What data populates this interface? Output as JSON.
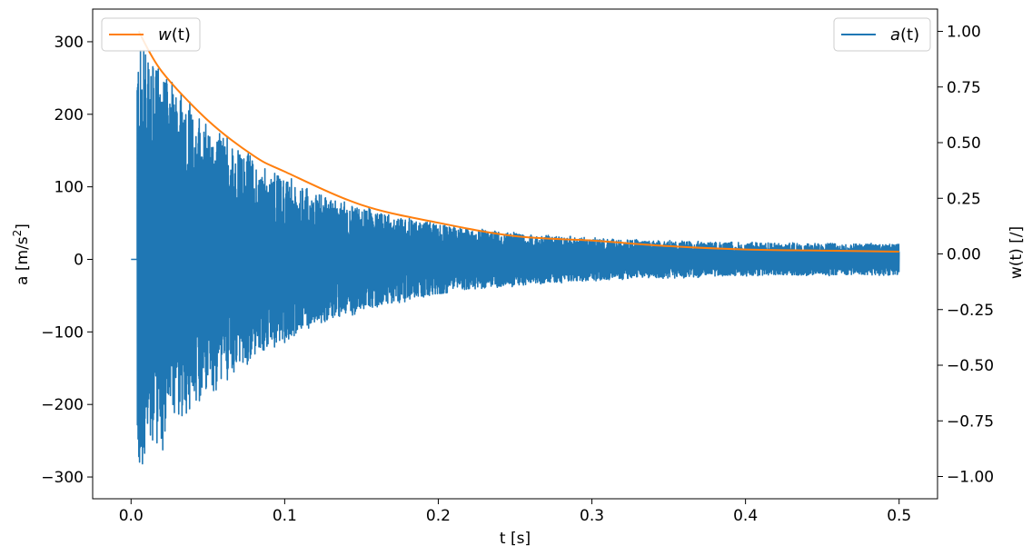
{
  "chart_data": {
    "type": "line",
    "xlabel": "t [s]",
    "ylabel_left_prefix": "a [m/s",
    "ylabel_left_sup": "2",
    "ylabel_left_suffix": "]",
    "ylabel_right": "w(t) [/]",
    "xlim": [
      -0.025,
      0.525
    ],
    "ylim_left": [
      -330,
      345
    ],
    "ylim_right": [
      -1.1,
      1.1
    ],
    "x_ticks": [
      0.0,
      0.1,
      0.2,
      0.3,
      0.4,
      0.5
    ],
    "x_tick_labels": [
      "0.0",
      "0.1",
      "0.2",
      "0.3",
      "0.4",
      "0.5"
    ],
    "y_left_ticks": [
      -300,
      -200,
      -100,
      0,
      100,
      200,
      300
    ],
    "y_left_tick_labels": [
      "−300",
      "−200",
      "−100",
      "0",
      "100",
      "200",
      "300"
    ],
    "y_right_ticks": [
      -1.0,
      -0.75,
      -0.5,
      -0.25,
      0.0,
      0.25,
      0.5,
      0.75,
      1.0
    ],
    "y_right_tick_labels": [
      "−1.00",
      "−0.75",
      "−0.50",
      "−0.25",
      "0.00",
      "0.25",
      "0.50",
      "0.75",
      "1.00"
    ],
    "grid": false,
    "series": [
      {
        "name": "a(t)",
        "legend_base": "a",
        "legend_arg": "(t)",
        "axis": "left",
        "color": "#1f77b4",
        "legend_position": "top-right",
        "pre_impact_end_s": 0.004,
        "peak_amplitude": 300,
        "end_amplitude": 20
      },
      {
        "name": "w(t)",
        "legend_base": "w",
        "legend_arg": "(t)",
        "axis": "right",
        "color": "#ff7f0e",
        "legend_position": "top-left",
        "x": [
          0.005,
          0.02,
          0.05,
          0.08,
          0.1,
          0.15,
          0.2,
          0.25,
          0.3,
          0.35,
          0.4,
          0.45,
          0.5
        ],
        "y": [
          1.0,
          0.82,
          0.6,
          0.44,
          0.37,
          0.22,
          0.14,
          0.08,
          0.06,
          0.035,
          0.02,
          0.015,
          0.01
        ]
      }
    ]
  }
}
